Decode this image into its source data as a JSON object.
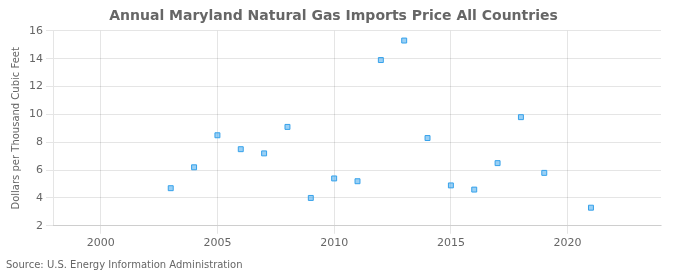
{
  "chart_data": {
    "type": "scatter",
    "title": "Annual Maryland Natural Gas Imports Price All Countries",
    "ylabel": "Dollars per Thousand Cubic Feet",
    "annotations": [
      "Source: U.S. Energy Information Administration"
    ],
    "x": [
      2003,
      2004,
      2005,
      2006,
      2007,
      2008,
      2009,
      2010,
      2011,
      2012,
      2013,
      2014,
      2015,
      2016,
      2017,
      2018,
      2019,
      2021
    ],
    "values": [
      4.7,
      6.2,
      8.5,
      7.5,
      7.2,
      9.1,
      4.0,
      5.4,
      5.2,
      13.9,
      15.3,
      8.3,
      4.9,
      4.6,
      6.5,
      9.8,
      5.8,
      3.3
    ],
    "xlim": [
      1998,
      2024
    ],
    "xticks": [
      2000,
      2005,
      2010,
      2015,
      2020
    ],
    "ylim": [
      2,
      16
    ],
    "yticks": [
      2,
      4,
      6,
      8,
      10,
      12,
      14,
      16
    ],
    "marker": "square",
    "grid": true
  }
}
